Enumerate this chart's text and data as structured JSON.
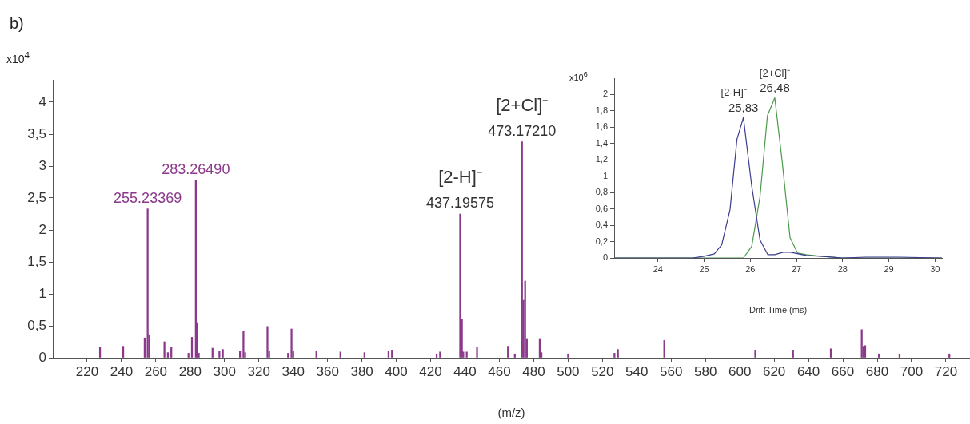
{
  "chart_data": [
    {
      "type": "bar",
      "title": "b)",
      "xlabel": "(m/z)",
      "ylabel": "x10$^{4}$",
      "color": "#8b3a8b",
      "grid": false,
      "legend": false,
      "x": [
        227.5,
        241,
        253.5,
        255.23369,
        256.2,
        265,
        267,
        269,
        279,
        281,
        283.2649,
        284.2,
        285,
        293,
        297,
        299,
        309,
        311,
        312,
        325,
        326,
        337,
        339,
        340,
        353.5,
        367.5,
        381.5,
        395.5,
        397.5,
        423.5,
        425.5,
        437.19575,
        438.2,
        439,
        441,
        447,
        465,
        469,
        473.1721,
        474,
        475,
        476,
        483.5,
        484.5,
        500,
        527,
        529,
        556,
        609,
        631,
        653,
        671,
        672,
        673,
        681,
        693,
        722
      ],
      "values": [
        0.17,
        0.18,
        0.31,
        2.33,
        0.36,
        0.25,
        0.08,
        0.16,
        0.07,
        0.32,
        2.78,
        0.55,
        0.07,
        0.15,
        0.1,
        0.13,
        0.1,
        0.42,
        0.08,
        0.49,
        0.1,
        0.07,
        0.45,
        0.1,
        0.1,
        0.09,
        0.08,
        0.1,
        0.12,
        0.06,
        0.09,
        2.25,
        0.6,
        0.09,
        0.09,
        0.17,
        0.18,
        0.06,
        3.38,
        0.9,
        1.2,
        0.3,
        0.3,
        0.08,
        0.06,
        0.07,
        0.13,
        0.27,
        0.12,
        0.12,
        0.14,
        0.44,
        0.18,
        0.19,
        0.06,
        0.06,
        0.06
      ],
      "xlim": [
        200,
        734
      ],
      "xticks": [
        220,
        240,
        260,
        280,
        300,
        320,
        340,
        360,
        380,
        400,
        420,
        440,
        460,
        480,
        500,
        520,
        540,
        560,
        580,
        600,
        620,
        640,
        660,
        680,
        700,
        720
      ],
      "ylim": [
        0,
        4.35
      ],
      "yticks": [
        0,
        {
          "value": 0.5,
          "label": "0,5"
        },
        1,
        {
          "value": 1.5,
          "label": "1,5"
        },
        2,
        {
          "value": 2.5,
          "label": "2,5"
        },
        3,
        {
          "value": 3.5,
          "label": "3,5"
        },
        4
      ],
      "annotations": [
        {
          "text": "255.23369",
          "x": 255.23369,
          "y": 2.33
        },
        {
          "text": "283.26490",
          "x": 283.2649,
          "y": 2.78
        },
        {
          "text": "[2-H]⁻",
          "x": 437.19575,
          "y": 2.25
        },
        {
          "text": "437.19575",
          "x": 437.19575,
          "y": 2.25
        },
        {
          "text": "[2+Cl]⁻",
          "x": 473.1721,
          "y": 3.38
        },
        {
          "text": "473.17210",
          "x": 473.1721,
          "y": 3.38
        }
      ]
    },
    {
      "type": "line",
      "xlabel": "Drift Time (ms)",
      "ylabel": "x10$^{6}$",
      "grid": false,
      "legend": false,
      "marker": "none",
      "xlim": [
        23.05,
        30.15
      ],
      "xticks": [
        24,
        25,
        26,
        27,
        28,
        29,
        30
      ],
      "ylim": [
        0,
        2.2
      ],
      "yticks": [
        0,
        {
          "value": 0.2,
          "label": "0,2"
        },
        {
          "value": 0.4,
          "label": "0,4"
        },
        {
          "value": 0.6,
          "label": "0,6"
        },
        {
          "value": 0.8,
          "label": "0,8"
        },
        1,
        {
          "value": 1.2,
          "label": "1,2"
        },
        {
          "value": 1.4,
          "label": "1,4"
        },
        {
          "value": 1.6,
          "label": "1,6"
        },
        {
          "value": 1.8,
          "label": "1,8"
        },
        2
      ],
      "series": [
        {
          "name": "[2-H]⁻",
          "color": "#3b3b8f",
          "x": [
            23.05,
            24.75,
            25.0,
            25.22,
            25.38,
            25.56,
            25.71,
            25.85,
            26.03,
            26.21,
            26.38,
            26.53,
            26.71,
            26.87,
            27.04,
            27.21,
            27.53,
            27.99,
            28.5,
            29.2,
            30.15
          ],
          "values": [
            0,
            0,
            0.02,
            0.05,
            0.16,
            0.59,
            1.45,
            1.72,
            0.88,
            0.22,
            0.04,
            0.04,
            0.07,
            0.07,
            0.05,
            0.03,
            0.02,
            0,
            0.01,
            0.01,
            0
          ]
        },
        {
          "name": "[2+Cl]⁻",
          "color": "#4a9a4a",
          "x": [
            23.05,
            25.85,
            26.03,
            26.21,
            26.37,
            26.53,
            26.69,
            26.86,
            27.02,
            27.21,
            27.53,
            28.0,
            30.15
          ],
          "values": [
            0,
            0,
            0.14,
            0.75,
            1.74,
            1.96,
            1.18,
            0.25,
            0.06,
            0.04,
            0.02,
            0,
            0
          ]
        }
      ],
      "annotations": [
        {
          "text": "25,83",
          "x": 25.85,
          "y": 1.72
        },
        {
          "text": "26,48",
          "x": 26.53,
          "y": 1.96
        }
      ]
    }
  ]
}
